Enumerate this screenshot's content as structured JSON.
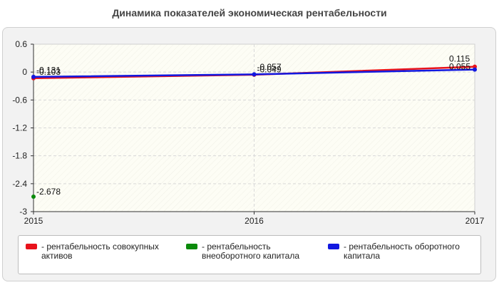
{
  "chart_data": {
    "type": "line",
    "title": "Динамика показателей экономическая рентабельности",
    "xlabel": "",
    "ylabel": "",
    "categories": [
      "2015",
      "2016",
      "2017"
    ],
    "ylim": [
      -3,
      0.6
    ],
    "yticks": [
      "0.6",
      "0",
      "-0.6",
      "-1.2",
      "-1.8",
      "-2.4",
      "-3"
    ],
    "yticks_values": [
      0.6,
      0,
      -0.6,
      -1.2,
      -1.8,
      -2.4,
      -3
    ],
    "grid": true,
    "legend_position": "bottom",
    "series": [
      {
        "name": "- рентабельность совокупных активов",
        "color": "#e8121b",
        "values": [
          -0.131,
          -0.057,
          0.115
        ],
        "labels": [
          "-0.131",
          "-0.057",
          "0.115"
        ]
      },
      {
        "name": "- рентабельность внеоборотного капитала",
        "color": "#0a8a0a",
        "values": [
          -2.678,
          null,
          null
        ],
        "labels": [
          "-2.678",
          "",
          ""
        ]
      },
      {
        "name": "- рентабельность оборотного капитала",
        "color": "#1218e0",
        "values": [
          -0.103,
          -0.049,
          0.055
        ],
        "labels": [
          "-0.103",
          "-0.049",
          "0.055"
        ]
      }
    ]
  }
}
